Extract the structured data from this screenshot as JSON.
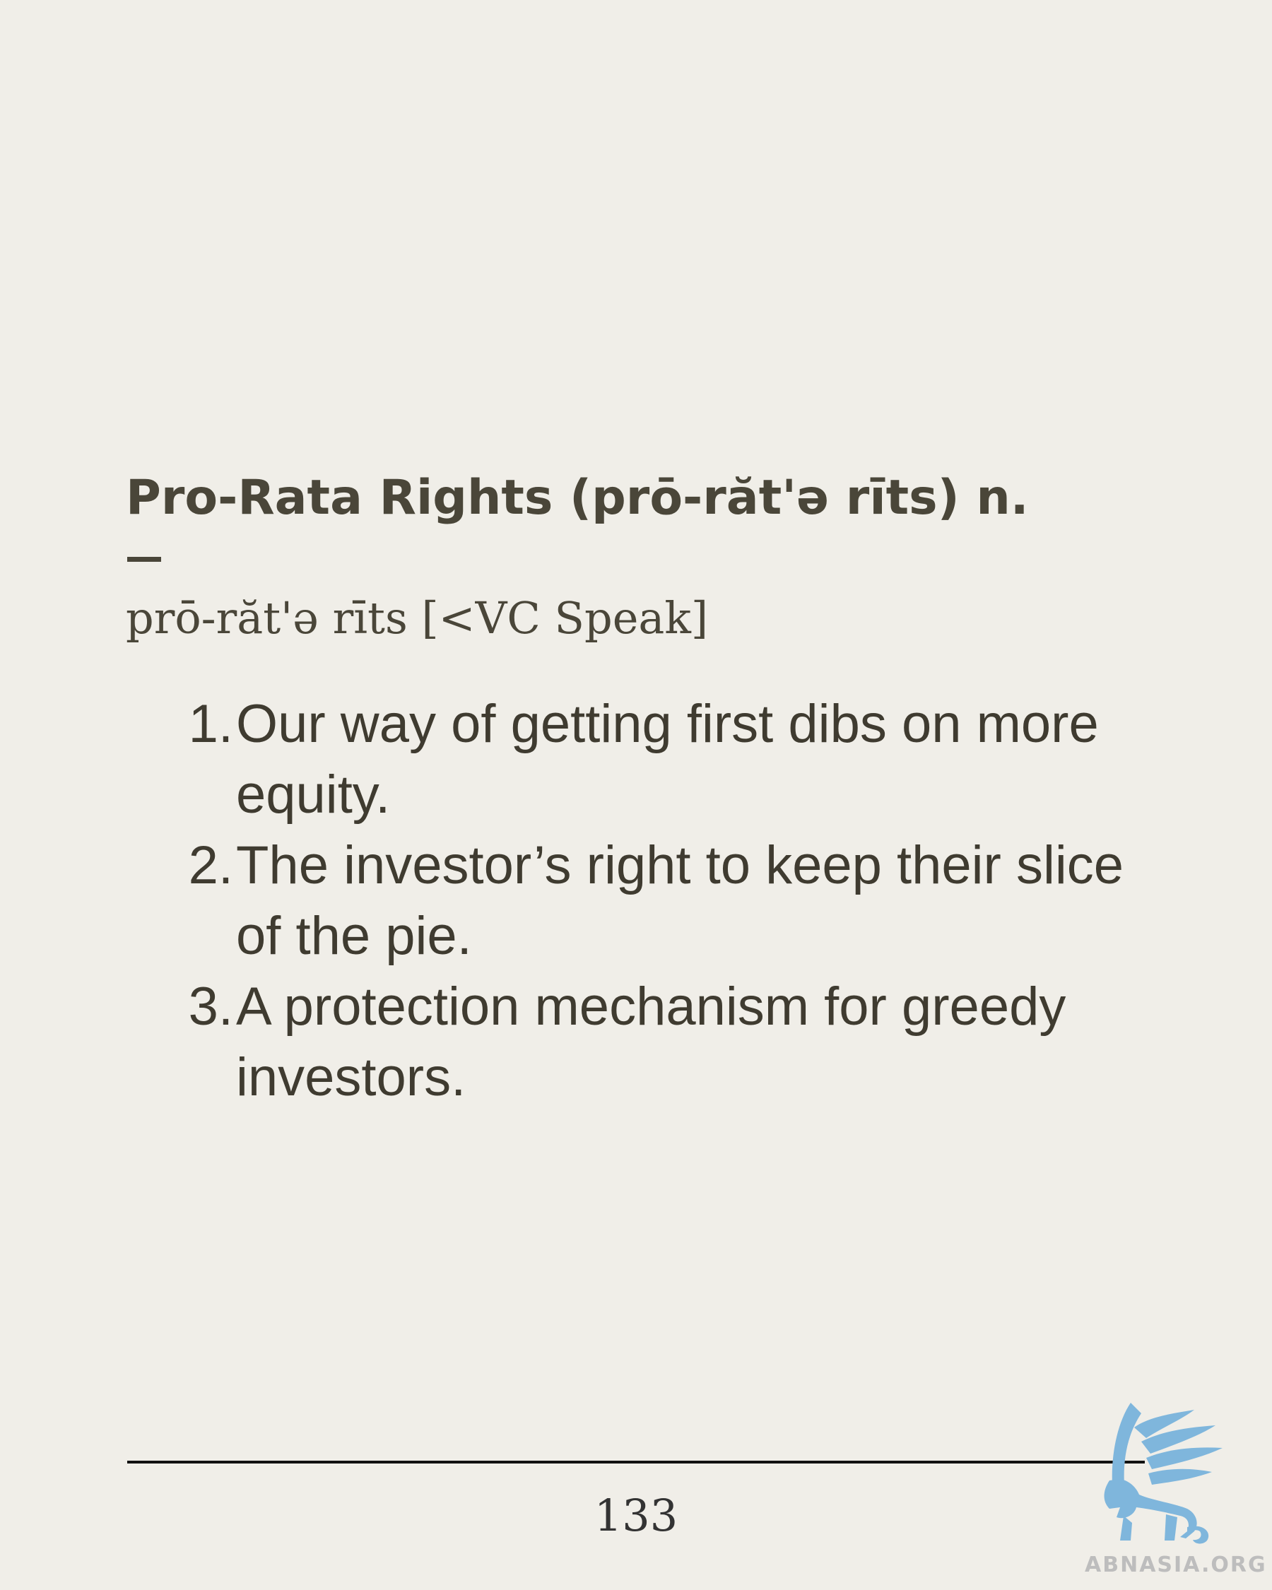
{
  "entry": {
    "title": "Pro-Rata Rights (prō-răt'ə rīts) n.",
    "pronunciation": "prō-răt'ə rīts [<VC Speak]",
    "definitions": [
      {
        "number": "1.",
        "text": "Our way of getting first dibs on more equity."
      },
      {
        "number": "2.",
        "text": "The investor’s right to keep their slice of the pie."
      },
      {
        "number": "3.",
        "text": "A protection mechanism for greedy investors."
      }
    ]
  },
  "footer": {
    "page_number": "133"
  },
  "logo": {
    "icon": "griffin-icon",
    "text": "ABNASIA.ORG",
    "color": "#7fb6dc"
  },
  "colors": {
    "background": "#f0eee8",
    "text": "#4a4639",
    "rule": "#111111"
  }
}
